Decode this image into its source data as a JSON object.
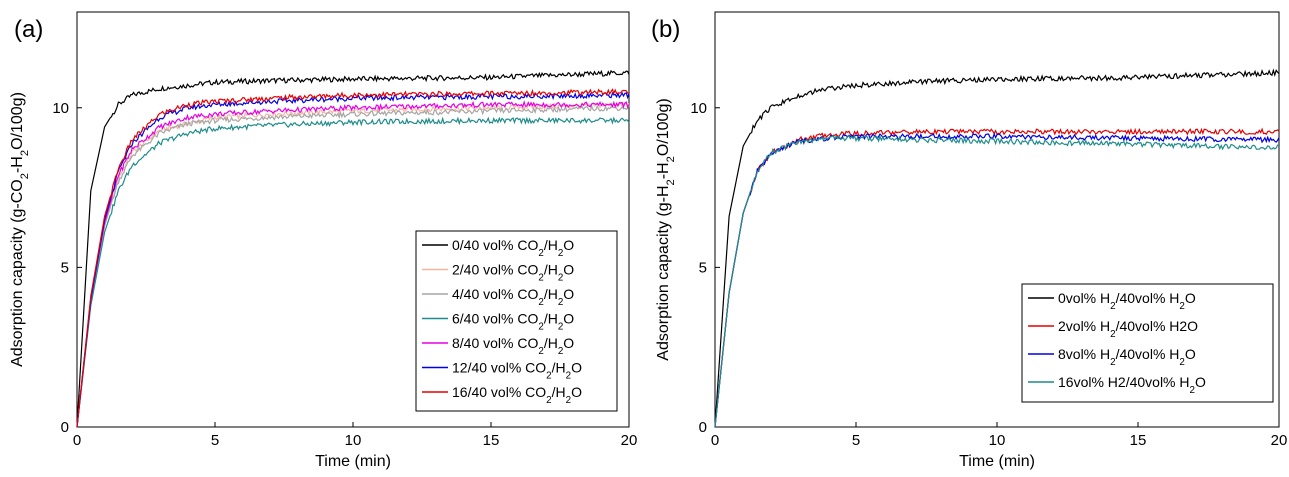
{
  "chart_data": [
    {
      "type": "line",
      "panel_label": "(a)",
      "xlabel": "Time (min)",
      "ylabel": "Adsorption capacity (g-CO₂-H₂O/100g)",
      "xlim": [
        0,
        20
      ],
      "ylim": [
        0,
        13
      ],
      "xticks": [
        "0",
        "5",
        "10",
        "15",
        "20"
      ],
      "yticks": [
        "0",
        "5",
        "10"
      ],
      "grid": false,
      "legend_position": "bottom-right",
      "series": [
        {
          "name": "0/40 vol% CO₂/H₂O",
          "color": "#000000",
          "x": [
            0,
            0.5,
            1,
            1.5,
            2,
            3,
            4,
            5,
            7,
            10,
            15,
            20
          ],
          "y": [
            0,
            7.4,
            9.4,
            10.1,
            10.4,
            10.6,
            10.7,
            10.8,
            10.85,
            10.9,
            10.95,
            11.1
          ]
        },
        {
          "name": "2/40 vol% CO₂/H₂O",
          "color": "#f4b6a2",
          "x": [
            0,
            0.5,
            1,
            1.5,
            2,
            3,
            4,
            5,
            7,
            10,
            15,
            20
          ],
          "y": [
            0,
            3.9,
            6.3,
            7.8,
            8.6,
            9.3,
            9.5,
            9.7,
            9.8,
            9.9,
            10.0,
            10.1
          ]
        },
        {
          "name": "4/40 vol% CO₂/H₂O",
          "color": "#a6a6a6",
          "x": [
            0,
            0.5,
            1,
            1.5,
            2,
            3,
            4,
            5,
            7,
            10,
            15,
            20
          ],
          "y": [
            0,
            3.9,
            6.3,
            7.7,
            8.5,
            9.2,
            9.5,
            9.6,
            9.7,
            9.8,
            9.9,
            10.0
          ]
        },
        {
          "name": "6/40 vol% CO₂/H₂O",
          "color": "#1f8c8c",
          "x": [
            0,
            0.5,
            1,
            1.5,
            2,
            3,
            4,
            5,
            7,
            10,
            15,
            20
          ],
          "y": [
            0,
            3.8,
            6.1,
            7.4,
            8.2,
            8.9,
            9.2,
            9.35,
            9.45,
            9.55,
            9.6,
            9.6
          ]
        },
        {
          "name": "8/40 vol% CO₂/H₂O",
          "color": "#e600e6",
          "x": [
            0,
            0.5,
            1,
            1.5,
            2,
            3,
            4,
            5,
            7,
            10,
            15,
            20
          ],
          "y": [
            0,
            4.0,
            6.4,
            7.9,
            8.7,
            9.4,
            9.7,
            9.8,
            9.9,
            10.0,
            10.1,
            10.1
          ]
        },
        {
          "name": "12/40 vol% CO₂/H₂O",
          "color": "#0000e6",
          "x": [
            0,
            0.5,
            1,
            1.5,
            2,
            3,
            4,
            5,
            7,
            10,
            15,
            20
          ],
          "y": [
            0,
            4.0,
            6.5,
            8.0,
            8.9,
            9.7,
            10.0,
            10.1,
            10.2,
            10.3,
            10.35,
            10.4
          ]
        },
        {
          "name": "16/40 vol% CO₂/H₂O",
          "color": "#e60000",
          "x": [
            0,
            0.5,
            1,
            1.5,
            2,
            3,
            4,
            5,
            7,
            10,
            15,
            20
          ],
          "y": [
            0,
            4.1,
            6.6,
            8.1,
            9.0,
            9.8,
            10.1,
            10.2,
            10.3,
            10.4,
            10.45,
            10.5
          ]
        }
      ]
    },
    {
      "type": "line",
      "panel_label": "(b)",
      "xlabel": "Time (min)",
      "ylabel": "Adsorption capacity (g-H₂-H₂O/100g)",
      "xlim": [
        0,
        20
      ],
      "ylim": [
        0,
        13
      ],
      "xticks": [
        "0",
        "5",
        "10",
        "15",
        "20"
      ],
      "yticks": [
        "0",
        "5",
        "10"
      ],
      "grid": false,
      "legend_position": "bottom-right",
      "series": [
        {
          "name": "0vol% H₂/40vol% H₂O",
          "color": "#000000",
          "x": [
            0,
            0.5,
            1,
            1.5,
            2,
            3,
            4,
            5,
            7,
            10,
            15,
            20
          ],
          "y": [
            0,
            6.6,
            8.8,
            9.6,
            10.0,
            10.4,
            10.6,
            10.7,
            10.8,
            10.9,
            10.95,
            11.1
          ]
        },
        {
          "name": "2vol% H₂/40vol% H2O",
          "color": "#e60000",
          "x": [
            0,
            0.5,
            1,
            1.5,
            2,
            3,
            4,
            5,
            7,
            10,
            15,
            20
          ],
          "y": [
            0,
            4.2,
            6.7,
            8.0,
            8.6,
            9.0,
            9.15,
            9.2,
            9.25,
            9.25,
            9.25,
            9.25
          ]
        },
        {
          "name": "8vol% H₂/40vol% H₂O",
          "color": "#0000e6",
          "x": [
            0,
            0.5,
            1,
            1.5,
            2,
            3,
            4,
            5,
            7,
            10,
            15,
            20
          ],
          "y": [
            0,
            4.2,
            6.7,
            8.0,
            8.6,
            8.95,
            9.05,
            9.1,
            9.1,
            9.1,
            9.05,
            9.0
          ]
        },
        {
          "name": "16vol% H2/40vol% H₂O",
          "color": "#1f8c8c",
          "x": [
            0,
            0.5,
            1,
            1.5,
            2,
            3,
            4,
            5,
            7,
            10,
            15,
            20
          ],
          "y": [
            0,
            4.2,
            6.7,
            8.0,
            8.6,
            8.95,
            9.05,
            9.05,
            9.0,
            8.95,
            8.85,
            8.75
          ]
        }
      ]
    }
  ]
}
